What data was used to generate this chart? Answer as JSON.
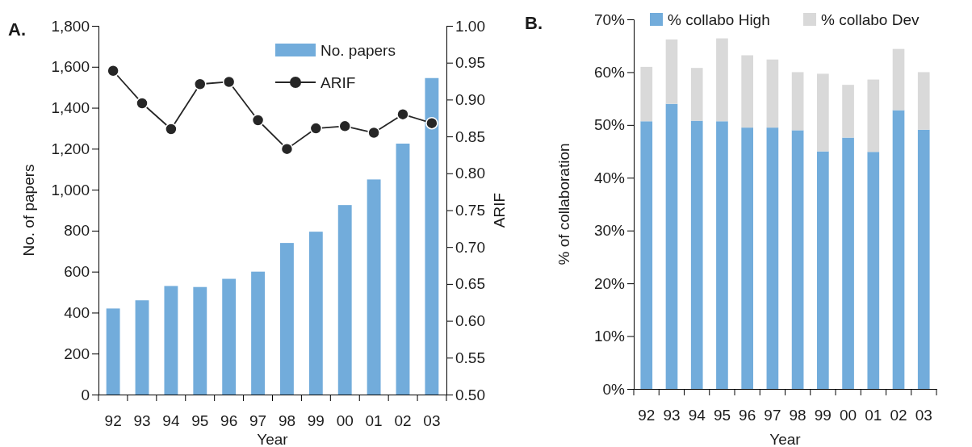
{
  "chart_data": [
    {
      "type": "bar",
      "title": "A.",
      "xlabel": "Year",
      "ylabel": "No. of papers",
      "y2label": "ARIF",
      "categories": [
        "92",
        "93",
        "94",
        "95",
        "96",
        "97",
        "98",
        "99",
        "00",
        "01",
        "02",
        "03"
      ],
      "series": [
        {
          "name": "No. papers",
          "color": "#72acdb",
          "values": [
            420,
            460,
            530,
            525,
            565,
            600,
            740,
            795,
            925,
            1050,
            1225,
            1545
          ]
        },
        {
          "name": "ARIF",
          "type": "line",
          "axis": "y2",
          "color": "#262626",
          "marker": "circle",
          "values": [
            0.939,
            0.895,
            0.86,
            0.921,
            0.924,
            0.872,
            0.833,
            0.861,
            0.864,
            0.855,
            0.88,
            0.868
          ]
        }
      ],
      "ylim": [
        0,
        1800
      ],
      "yticks": [
        {
          "value": 0,
          "label": "0"
        },
        {
          "value": 200,
          "label": "200"
        },
        {
          "value": 400,
          "label": "400"
        },
        {
          "value": 600,
          "label": "600"
        },
        {
          "value": 800,
          "label": "800"
        },
        {
          "value": 1000,
          "label": "1,000"
        },
        {
          "value": 1200,
          "label": "1,200"
        },
        {
          "value": 1400,
          "label": "1,400"
        },
        {
          "value": 1600,
          "label": "1,600"
        },
        {
          "value": 1800,
          "label": "1,800"
        }
      ],
      "y2lim": [
        0.5,
        1.0
      ],
      "y2ticks": [
        {
          "value": 0.5,
          "label": "0.50"
        },
        {
          "value": 0.55,
          "label": "0.55"
        },
        {
          "value": 0.6,
          "label": "0.60"
        },
        {
          "value": 0.65,
          "label": "0.65"
        },
        {
          "value": 0.7,
          "label": "0.70"
        },
        {
          "value": 0.75,
          "label": "0.75"
        },
        {
          "value": 0.8,
          "label": "0.80"
        },
        {
          "value": 0.85,
          "label": "0.85"
        },
        {
          "value": 0.9,
          "label": "0.90"
        },
        {
          "value": 0.95,
          "label": "0.95"
        },
        {
          "value": 1.0,
          "label": "1.00"
        }
      ],
      "legend": "top right"
    },
    {
      "type": "bar",
      "title": "B.",
      "xlabel": "Year",
      "ylabel": "% of collaboration",
      "stacked": true,
      "categories": [
        "92",
        "93",
        "94",
        "95",
        "96",
        "97",
        "98",
        "99",
        "00",
        "01",
        "02",
        "03"
      ],
      "series": [
        {
          "name": "% collabo High",
          "color": "#72acdb",
          "values": [
            50.7,
            54.0,
            50.8,
            50.7,
            49.5,
            49.5,
            49.0,
            45.0,
            47.6,
            44.9,
            52.8,
            49.1
          ]
        },
        {
          "name": "% collabo Dev",
          "color": "#d9d9d9",
          "values": [
            10.3,
            12.2,
            10.0,
            15.7,
            13.7,
            12.9,
            11.0,
            14.7,
            10.0,
            13.7,
            11.6,
            10.9
          ]
        }
      ],
      "ylim": [
        0,
        70
      ],
      "yticks": [
        {
          "value": 0,
          "label": "0%"
        },
        {
          "value": 10,
          "label": "10%"
        },
        {
          "value": 20,
          "label": "20%"
        },
        {
          "value": 30,
          "label": "30%"
        },
        {
          "value": 40,
          "label": "40%"
        },
        {
          "value": 50,
          "label": "50%"
        },
        {
          "value": 60,
          "label": "60%"
        },
        {
          "value": 70,
          "label": "70%"
        }
      ],
      "legend": "top"
    }
  ]
}
